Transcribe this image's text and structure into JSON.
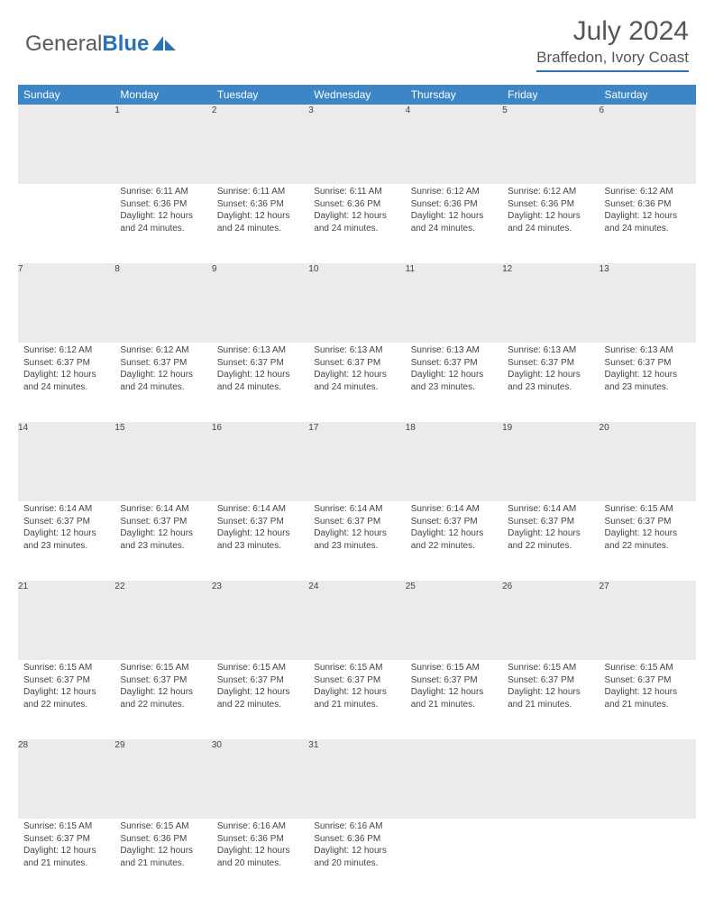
{
  "brand": {
    "part1": "General",
    "part2": "Blue"
  },
  "title": "July 2024",
  "location": "Braffedon, Ivory Coast",
  "daysOfWeek": [
    "Sunday",
    "Monday",
    "Tuesday",
    "Wednesday",
    "Thursday",
    "Friday",
    "Saturday"
  ],
  "colors": {
    "headerBg": "#3c86c7",
    "border": "#2a72b5",
    "dayBg": "#eceaea",
    "text": "#444"
  },
  "startWeekday": 1,
  "daysInMonth": 31,
  "cells": {
    "1": {
      "sunrise": "6:11 AM",
      "sunset": "6:36 PM",
      "daylight": "12 hours and 24 minutes."
    },
    "2": {
      "sunrise": "6:11 AM",
      "sunset": "6:36 PM",
      "daylight": "12 hours and 24 minutes."
    },
    "3": {
      "sunrise": "6:11 AM",
      "sunset": "6:36 PM",
      "daylight": "12 hours and 24 minutes."
    },
    "4": {
      "sunrise": "6:12 AM",
      "sunset": "6:36 PM",
      "daylight": "12 hours and 24 minutes."
    },
    "5": {
      "sunrise": "6:12 AM",
      "sunset": "6:36 PM",
      "daylight": "12 hours and 24 minutes."
    },
    "6": {
      "sunrise": "6:12 AM",
      "sunset": "6:36 PM",
      "daylight": "12 hours and 24 minutes."
    },
    "7": {
      "sunrise": "6:12 AM",
      "sunset": "6:37 PM",
      "daylight": "12 hours and 24 minutes."
    },
    "8": {
      "sunrise": "6:12 AM",
      "sunset": "6:37 PM",
      "daylight": "12 hours and 24 minutes."
    },
    "9": {
      "sunrise": "6:13 AM",
      "sunset": "6:37 PM",
      "daylight": "12 hours and 24 minutes."
    },
    "10": {
      "sunrise": "6:13 AM",
      "sunset": "6:37 PM",
      "daylight": "12 hours and 24 minutes."
    },
    "11": {
      "sunrise": "6:13 AM",
      "sunset": "6:37 PM",
      "daylight": "12 hours and 23 minutes."
    },
    "12": {
      "sunrise": "6:13 AM",
      "sunset": "6:37 PM",
      "daylight": "12 hours and 23 minutes."
    },
    "13": {
      "sunrise": "6:13 AM",
      "sunset": "6:37 PM",
      "daylight": "12 hours and 23 minutes."
    },
    "14": {
      "sunrise": "6:14 AM",
      "sunset": "6:37 PM",
      "daylight": "12 hours and 23 minutes."
    },
    "15": {
      "sunrise": "6:14 AM",
      "sunset": "6:37 PM",
      "daylight": "12 hours and 23 minutes."
    },
    "16": {
      "sunrise": "6:14 AM",
      "sunset": "6:37 PM",
      "daylight": "12 hours and 23 minutes."
    },
    "17": {
      "sunrise": "6:14 AM",
      "sunset": "6:37 PM",
      "daylight": "12 hours and 23 minutes."
    },
    "18": {
      "sunrise": "6:14 AM",
      "sunset": "6:37 PM",
      "daylight": "12 hours and 22 minutes."
    },
    "19": {
      "sunrise": "6:14 AM",
      "sunset": "6:37 PM",
      "daylight": "12 hours and 22 minutes."
    },
    "20": {
      "sunrise": "6:15 AM",
      "sunset": "6:37 PM",
      "daylight": "12 hours and 22 minutes."
    },
    "21": {
      "sunrise": "6:15 AM",
      "sunset": "6:37 PM",
      "daylight": "12 hours and 22 minutes."
    },
    "22": {
      "sunrise": "6:15 AM",
      "sunset": "6:37 PM",
      "daylight": "12 hours and 22 minutes."
    },
    "23": {
      "sunrise": "6:15 AM",
      "sunset": "6:37 PM",
      "daylight": "12 hours and 22 minutes."
    },
    "24": {
      "sunrise": "6:15 AM",
      "sunset": "6:37 PM",
      "daylight": "12 hours and 21 minutes."
    },
    "25": {
      "sunrise": "6:15 AM",
      "sunset": "6:37 PM",
      "daylight": "12 hours and 21 minutes."
    },
    "26": {
      "sunrise": "6:15 AM",
      "sunset": "6:37 PM",
      "daylight": "12 hours and 21 minutes."
    },
    "27": {
      "sunrise": "6:15 AM",
      "sunset": "6:37 PM",
      "daylight": "12 hours and 21 minutes."
    },
    "28": {
      "sunrise": "6:15 AM",
      "sunset": "6:37 PM",
      "daylight": "12 hours and 21 minutes."
    },
    "29": {
      "sunrise": "6:15 AM",
      "sunset": "6:36 PM",
      "daylight": "12 hours and 21 minutes."
    },
    "30": {
      "sunrise": "6:16 AM",
      "sunset": "6:36 PM",
      "daylight": "12 hours and 20 minutes."
    },
    "31": {
      "sunrise": "6:16 AM",
      "sunset": "6:36 PM",
      "daylight": "12 hours and 20 minutes."
    }
  },
  "labels": {
    "sunrise": "Sunrise:",
    "sunset": "Sunset:",
    "daylight": "Daylight:"
  }
}
